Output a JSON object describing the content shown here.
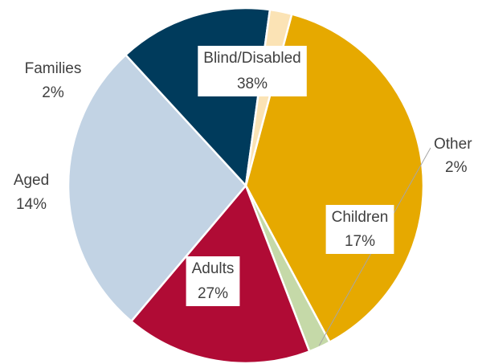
{
  "chart_data": {
    "type": "pie",
    "categories": [
      "Blind/Disabled",
      "Other",
      "Children",
      "Adults",
      "Aged",
      "Families"
    ],
    "values": [
      38,
      2,
      17,
      27,
      14,
      2
    ],
    "value_labels": [
      "38%",
      "2%",
      "17%",
      "27%",
      "14%",
      "2%"
    ],
    "colors": [
      "#E6A900",
      "#C5D9A8",
      "#B00B35",
      "#C2D3E4",
      "#003B5C",
      "#FBE3B5"
    ],
    "start_angle_deg": 15,
    "direction": "clockwise",
    "legend": "none",
    "labels": "category-and-percent"
  }
}
